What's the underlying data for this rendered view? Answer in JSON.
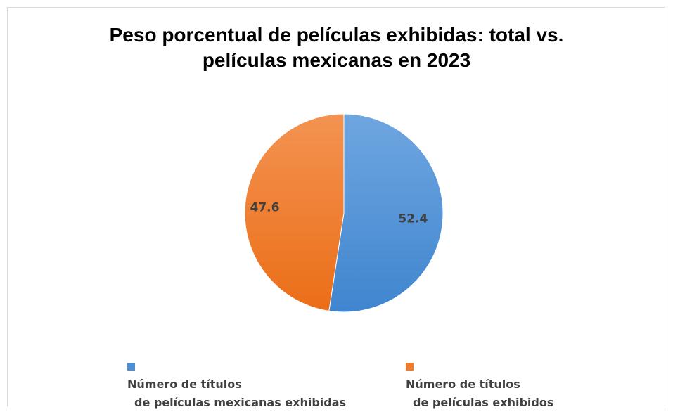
{
  "chart_data": {
    "type": "pie",
    "title_line1": "Peso porcentual de películas exhibidas: total vs.",
    "title_line2": "películas mexicanas en 2023",
    "slices": [
      {
        "label_line1": "Número de títulos",
        "label_line2": "de películas mexicanas exhibidas",
        "value": 52.4,
        "value_label": "52.4",
        "color": "#4e8fd4"
      },
      {
        "label_line1": "Número de títulos",
        "label_line2": "de películas exhibidos",
        "value": 47.6,
        "value_label": "47.6",
        "color": "#ef7b2c"
      }
    ],
    "legend_position": "bottom"
  }
}
